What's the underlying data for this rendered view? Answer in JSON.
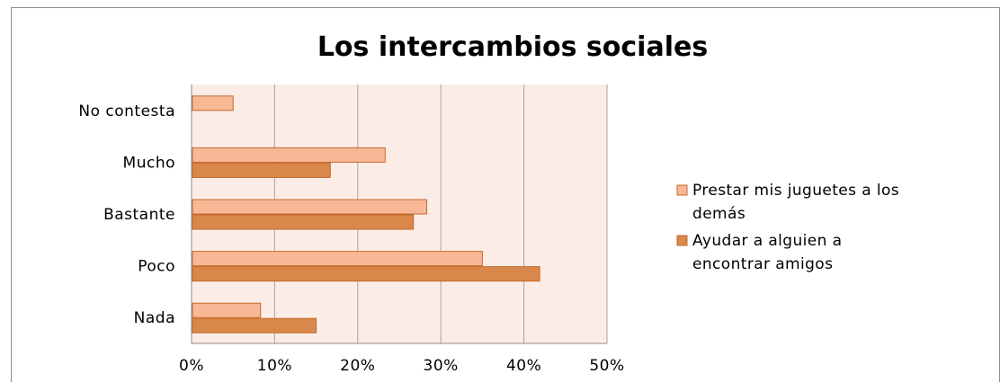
{
  "chart_data": {
    "type": "bar",
    "orientation": "horizontal",
    "title": "Los intercambios sociales",
    "xlabel": "",
    "ylabel": "",
    "categories": [
      "Nada",
      "Poco",
      "Bastante",
      "Mucho",
      "No contesta"
    ],
    "series": [
      {
        "name_lines": [
          "Prestar mis juguetes a los",
          "demás"
        ],
        "color": "#f8b896",
        "values": [
          8.3,
          35.0,
          28.3,
          23.3,
          5.0
        ]
      },
      {
        "name_lines": [
          "Ayudar a alguien a",
          "encontrar amigos"
        ],
        "color": "#d9874a",
        "values": [
          15.0,
          41.9,
          26.7,
          16.7,
          0
        ]
      }
    ],
    "xlim": [
      0,
      50
    ],
    "xticks": [
      0,
      10,
      20,
      30,
      40,
      50
    ],
    "xtick_labels": [
      "0%",
      "10%",
      "20%",
      "30%",
      "40%",
      "50%"
    ],
    "grid": true,
    "legend_position": "right",
    "plot_background": "#fcece6",
    "grid_color": "#a6a6a6"
  }
}
